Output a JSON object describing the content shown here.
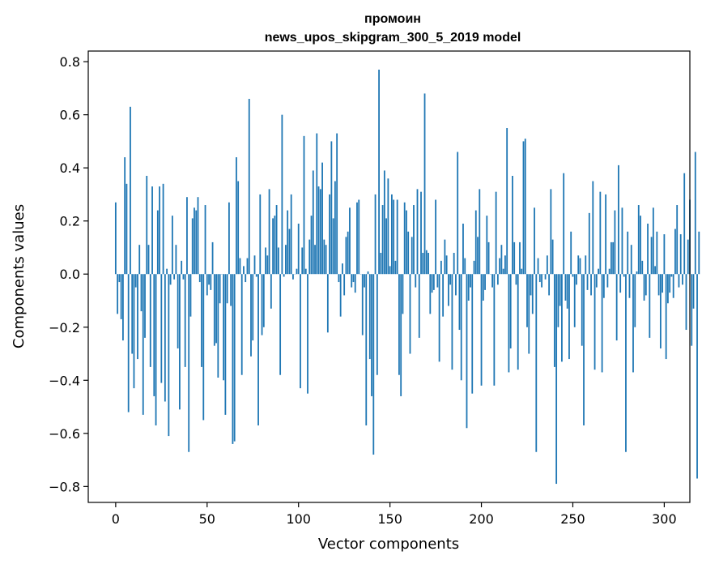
{
  "chart_data": {
    "type": "bar",
    "title": "промоин",
    "subtitle": "news_upos_skipgram_300_5_2019 model",
    "xlabel": "Vector components",
    "ylabel": "Components values",
    "xlim": [
      -15,
      314
    ],
    "ylim": [
      -0.86,
      0.84
    ],
    "xticks": [
      0,
      50,
      100,
      150,
      200,
      250,
      300
    ],
    "yticks": [
      -0.8,
      -0.6,
      -0.4,
      -0.2,
      0.0,
      0.2,
      0.4,
      0.6,
      0.8
    ],
    "ytick_labels": [
      "−0.8",
      "−0.6",
      "−0.4",
      "−0.2",
      "0.0",
      "0.2",
      "0.4",
      "0.6",
      "0.8"
    ],
    "bar_color": "#1f77b4",
    "grid": false,
    "values": [
      0.27,
      -0.15,
      -0.03,
      -0.17,
      -0.25,
      0.44,
      0.34,
      -0.52,
      0.63,
      -0.3,
      -0.43,
      -0.05,
      -0.32,
      0.11,
      -0.14,
      -0.53,
      -0.24,
      0.37,
      0.11,
      -0.35,
      0.33,
      -0.46,
      -0.57,
      0.24,
      0.33,
      -0.41,
      0.34,
      -0.48,
      0.02,
      -0.61,
      -0.04,
      0.22,
      -0.02,
      0.11,
      -0.28,
      -0.51,
      0.05,
      -0.02,
      -0.35,
      0.29,
      -0.67,
      -0.16,
      0.21,
      0.25,
      0.24,
      0.29,
      -0.03,
      -0.35,
      -0.55,
      0.26,
      -0.08,
      -0.04,
      -0.06,
      0.12,
      -0.27,
      -0.26,
      -0.39,
      -0.11,
      0.0,
      -0.4,
      -0.53,
      -0.11,
      0.27,
      -0.12,
      -0.64,
      -0.63,
      0.44,
      0.35,
      0.06,
      -0.38,
      0.03,
      -0.03,
      0.06,
      0.66,
      -0.31,
      -0.25,
      0.07,
      -0.01,
      -0.57,
      0.3,
      -0.23,
      -0.2,
      0.1,
      0.07,
      0.32,
      -0.13,
      0.21,
      0.22,
      0.26,
      0.1,
      -0.38,
      0.6,
      -0.01,
      0.11,
      0.24,
      0.17,
      0.3,
      -0.02,
      0.0,
      0.02,
      0.19,
      -0.43,
      0.1,
      0.52,
      0.02,
      -0.45,
      0.13,
      0.22,
      0.39,
      0.11,
      0.53,
      0.33,
      0.32,
      0.42,
      0.13,
      0.11,
      -0.22,
      0.3,
      0.5,
      0.21,
      0.35,
      0.53,
      -0.03,
      -0.16,
      0.04,
      -0.08,
      0.14,
      0.16,
      0.25,
      -0.05,
      -0.03,
      -0.07,
      0.27,
      0.28,
      0.0,
      -0.23,
      -0.05,
      -0.57,
      0.01,
      -0.32,
      -0.46,
      -0.68,
      0.3,
      -0.38,
      0.77,
      0.08,
      0.26,
      0.39,
      0.21,
      0.36,
      0.03,
      0.3,
      0.28,
      0.05,
      0.28,
      -0.38,
      -0.46,
      -0.15,
      0.27,
      0.24,
      0.16,
      -0.3,
      0.14,
      0.26,
      -0.05,
      0.32,
      -0.24,
      0.31,
      0.08,
      0.68,
      0.09,
      0.08,
      -0.15,
      -0.07,
      -0.06,
      0.28,
      -0.05,
      -0.33,
      0.05,
      -0.16,
      0.13,
      0.07,
      -0.12,
      -0.04,
      -0.36,
      0.08,
      -0.08,
      0.46,
      -0.21,
      -0.4,
      0.19,
      0.06,
      -0.58,
      -0.1,
      -0.05,
      -0.45,
      0.05,
      0.24,
      0.14,
      0.32,
      -0.42,
      -0.1,
      -0.06,
      0.22,
      0.12,
      0.0,
      -0.05,
      -0.42,
      0.31,
      -0.04,
      0.06,
      0.11,
      0.02,
      0.07,
      0.55,
      -0.37,
      -0.28,
      0.37,
      0.12,
      -0.04,
      -0.36,
      0.12,
      0.02,
      0.5,
      0.51,
      -0.2,
      -0.3,
      -0.08,
      -0.15,
      0.25,
      -0.67,
      0.06,
      -0.03,
      -0.05,
      0.0,
      -0.02,
      0.07,
      -0.08,
      0.32,
      0.13,
      -0.35,
      -0.79,
      -0.2,
      -0.12,
      -0.33,
      0.38,
      -0.1,
      -0.13,
      -0.32,
      0.16,
      -0.01,
      -0.2,
      -0.04,
      0.07,
      0.06,
      -0.27,
      -0.57,
      0.07,
      -0.06,
      0.23,
      -0.08,
      0.35,
      -0.36,
      -0.05,
      0.02,
      0.31,
      -0.37,
      -0.09,
      0.3,
      -0.05,
      0.02,
      0.12,
      0.12,
      0.24,
      -0.25,
      0.41,
      -0.07,
      0.25,
      -0.01,
      -0.67,
      0.16,
      -0.09,
      0.11,
      -0.37,
      -0.2,
      0.01,
      0.26,
      0.22,
      0.05,
      -0.1,
      -0.08,
      0.19,
      -0.24,
      0.14,
      0.25,
      0.03,
      0.16,
      -0.08,
      -0.28,
      -0.07,
      0.15,
      -0.32,
      -0.11,
      -0.07,
      -0.01,
      -0.09,
      0.17,
      0.26,
      -0.05,
      0.15,
      -0.04,
      0.38,
      -0.21,
      0.13,
      0.28,
      -0.27,
      -0.13,
      0.46,
      -0.77,
      0.16
    ]
  }
}
